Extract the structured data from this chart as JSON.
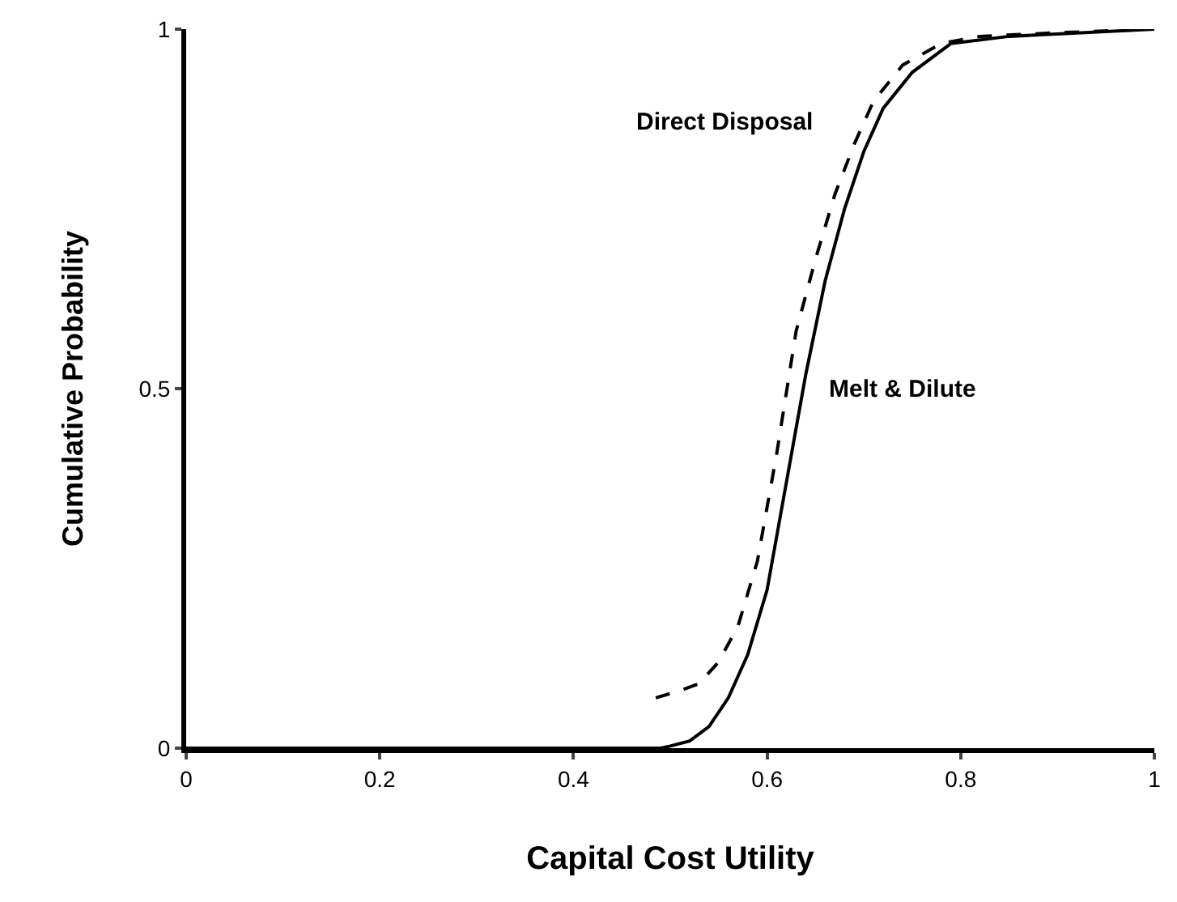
{
  "chart_data": {
    "type": "line",
    "xlabel": "Capital Cost Utility",
    "ylabel": "Cumulative Probability",
    "xlim": [
      0,
      1
    ],
    "xticks": [
      0,
      0.2,
      0.4,
      0.6,
      0.8,
      1
    ],
    "ylim": [
      0,
      1
    ],
    "yticks": [
      0,
      0.5,
      1
    ],
    "grid": false,
    "legend": false,
    "series": [
      {
        "name": "Direct Disposal",
        "color": "#000000",
        "line_style": "dashed",
        "x": [
          0.485,
          0.51,
          0.53,
          0.55,
          0.57,
          0.59,
          0.61,
          0.63,
          0.65,
          0.67,
          0.69,
          0.71,
          0.74,
          0.78,
          0.82,
          0.9,
          1.0
        ],
        "values": [
          0.07,
          0.08,
          0.09,
          0.12,
          0.17,
          0.26,
          0.41,
          0.58,
          0.68,
          0.77,
          0.84,
          0.9,
          0.95,
          0.98,
          0.99,
          0.995,
          1.0
        ]
      },
      {
        "name": "Melt & Dilute",
        "color": "#000000",
        "line_style": "solid",
        "x": [
          0,
          0.49,
          0.5,
          0.52,
          0.54,
          0.56,
          0.58,
          0.6,
          0.62,
          0.64,
          0.66,
          0.68,
          0.7,
          0.72,
          0.75,
          0.79,
          0.85,
          1.0
        ],
        "values": [
          0,
          0,
          0.003,
          0.01,
          0.03,
          0.07,
          0.13,
          0.22,
          0.37,
          0.52,
          0.65,
          0.75,
          0.83,
          0.89,
          0.94,
          0.98,
          0.99,
          1.0
        ]
      }
    ]
  }
}
